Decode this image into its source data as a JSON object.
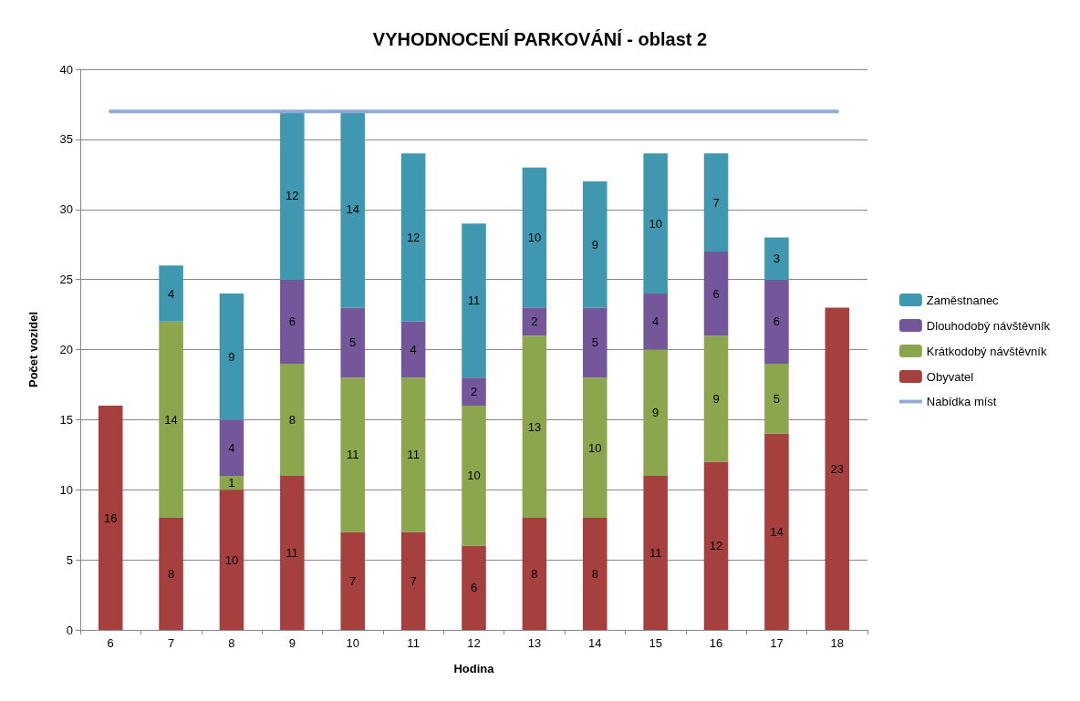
{
  "chart_data": {
    "type": "bar",
    "title": "VYHODNOCENÍ PARKOVÁNÍ - oblast 2",
    "xlabel": "Hodina",
    "ylabel": "Počet vozidel",
    "categories": [
      "6",
      "7",
      "8",
      "9",
      "10",
      "11",
      "12",
      "13",
      "14",
      "15",
      "16",
      "17",
      "18"
    ],
    "stacked": true,
    "grid": "y",
    "legend": "right",
    "ylim": [
      0,
      40
    ],
    "yticks": [
      0,
      5,
      10,
      15,
      20,
      25,
      30,
      35,
      40
    ],
    "series": [
      {
        "name": "Obyvatel",
        "color": "#a5403e",
        "values": [
          16,
          8,
          10,
          11,
          7,
          7,
          6,
          8,
          8,
          11,
          12,
          14,
          23
        ],
        "value_labels": [
          "16",
          "8",
          "10",
          "11",
          "7",
          "7",
          "6",
          "8",
          "8",
          "11",
          "12",
          "14",
          "23"
        ]
      },
      {
        "name": "Krátkodobý návštěvník",
        "color": "#8ba64c",
        "values": [
          null,
          14,
          1,
          8,
          11,
          11,
          10,
          13,
          10,
          9,
          9,
          5,
          null
        ],
        "value_labels": [
          null,
          "14",
          "1",
          "8",
          "11",
          "11",
          "10",
          "13",
          "10",
          "9",
          "9",
          "5",
          null
        ]
      },
      {
        "name": "Dlouhodobý návštěvník",
        "color": "#73579a",
        "values": [
          null,
          null,
          4,
          6,
          5,
          4,
          2,
          2,
          5,
          4,
          6,
          6,
          null
        ],
        "value_labels": [
          null,
          null,
          "4",
          "6",
          "5",
          "4",
          "2",
          "2",
          "5",
          "4",
          "6",
          "6",
          null
        ]
      },
      {
        "name": "Zaměstnanec",
        "color": "#3f98b0",
        "values": [
          null,
          4,
          9,
          12,
          14,
          12,
          11,
          10,
          9,
          10,
          7,
          3,
          null
        ],
        "value_labels": [
          null,
          "4",
          "9",
          "12",
          "14",
          "12",
          "11",
          "10",
          "9",
          "10",
          "7",
          "3",
          null
        ]
      },
      {
        "name": "Nabídka míst",
        "type": "line",
        "color": "#8eaad8",
        "marker": "none",
        "line_style": "solid",
        "values": [
          37,
          37,
          37,
          37,
          37,
          37,
          37,
          37,
          37,
          37,
          37,
          37,
          37
        ]
      }
    ]
  }
}
